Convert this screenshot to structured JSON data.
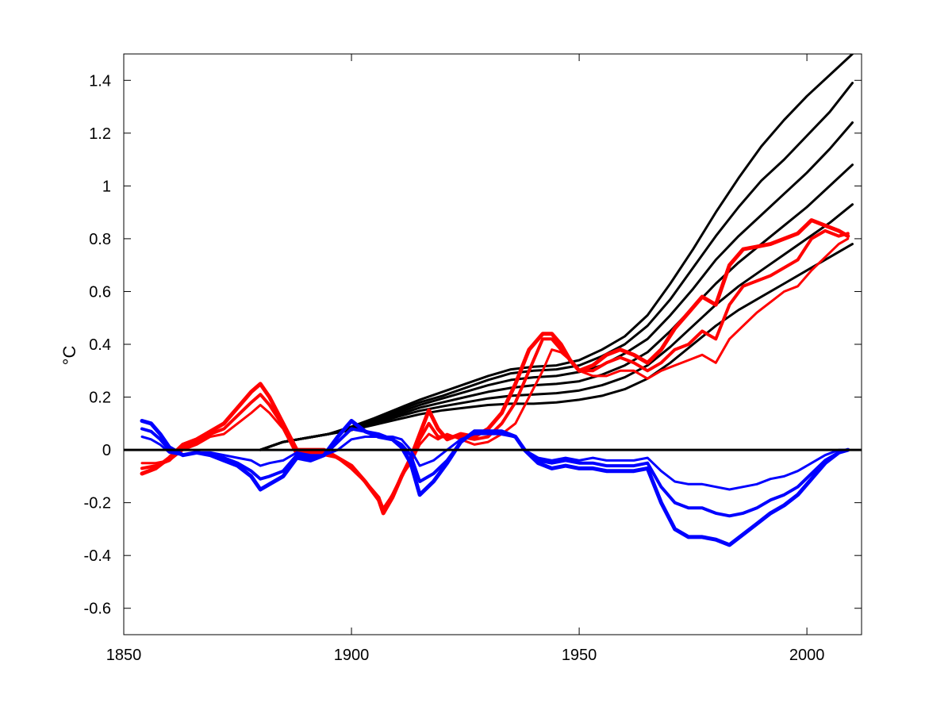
{
  "chart_data": {
    "type": "line",
    "title": "",
    "xlabel": "",
    "ylabel": "°C",
    "xlim": [
      1850,
      2012
    ],
    "ylim": [
      -0.7,
      1.5
    ],
    "xticks": [
      1850,
      1900,
      1950,
      2000
    ],
    "yticks": [
      -0.6,
      -0.4,
      -0.2,
      0,
      0.2,
      0.4,
      0.6,
      0.8,
      1,
      1.2,
      1.4
    ],
    "ytick_labels": [
      "-0.6",
      "-0.4",
      "-0.2",
      "0",
      "0.2",
      "0.4",
      "0.6",
      "0.8",
      "1",
      "1.2",
      "1.4"
    ],
    "grid": false,
    "zero_line": true,
    "colors": {
      "red": "#ff0000",
      "blue": "#0000ff",
      "black": "#000000"
    },
    "series": [
      {
        "color": "#000000",
        "width": 3,
        "x": [
          1880,
          1885,
          1890,
          1895,
          1900,
          1905,
          1910,
          1915,
          1920,
          1925,
          1930,
          1935,
          1940,
          1945,
          1950,
          1955,
          1960,
          1965,
          1970,
          1975,
          1980,
          1985,
          1990,
          1995,
          2000,
          2005,
          2010
        ],
        "y": [
          0,
          0.03,
          0.045,
          0.06,
          0.075,
          0.095,
          0.115,
          0.135,
          0.15,
          0.16,
          0.17,
          0.175,
          0.175,
          0.18,
          0.19,
          0.205,
          0.23,
          0.27,
          0.33,
          0.4,
          0.47,
          0.53,
          0.58,
          0.63,
          0.68,
          0.73,
          0.78
        ]
      },
      {
        "color": "#000000",
        "width": 3,
        "x": [
          1880,
          1885,
          1890,
          1895,
          1900,
          1905,
          1910,
          1915,
          1920,
          1925,
          1930,
          1935,
          1940,
          1945,
          1950,
          1955,
          1960,
          1965,
          1970,
          1975,
          1980,
          1985,
          1990,
          1995,
          2000,
          2005,
          2010
        ],
        "y": [
          0,
          0.03,
          0.045,
          0.06,
          0.075,
          0.1,
          0.125,
          0.148,
          0.165,
          0.18,
          0.195,
          0.205,
          0.21,
          0.215,
          0.225,
          0.245,
          0.275,
          0.32,
          0.39,
          0.47,
          0.55,
          0.62,
          0.68,
          0.74,
          0.8,
          0.86,
          0.93
        ]
      },
      {
        "color": "#000000",
        "width": 3,
        "x": [
          1880,
          1885,
          1890,
          1895,
          1900,
          1905,
          1910,
          1915,
          1920,
          1925,
          1930,
          1935,
          1940,
          1945,
          1950,
          1955,
          1960,
          1965,
          1970,
          1975,
          1980,
          1985,
          1990,
          1995,
          2000,
          2005,
          2010
        ],
        "y": [
          0,
          0.03,
          0.045,
          0.06,
          0.08,
          0.105,
          0.132,
          0.16,
          0.18,
          0.2,
          0.22,
          0.235,
          0.245,
          0.25,
          0.26,
          0.285,
          0.32,
          0.37,
          0.45,
          0.54,
          0.63,
          0.71,
          0.78,
          0.85,
          0.92,
          1.0,
          1.08
        ]
      },
      {
        "color": "#000000",
        "width": 3,
        "x": [
          1880,
          1885,
          1890,
          1895,
          1900,
          1905,
          1910,
          1915,
          1920,
          1925,
          1930,
          1935,
          1940,
          1945,
          1950,
          1955,
          1960,
          1965,
          1970,
          1975,
          1980,
          1985,
          1990,
          1995,
          2000,
          2005,
          2010
        ],
        "y": [
          0,
          0.03,
          0.045,
          0.06,
          0.085,
          0.11,
          0.14,
          0.17,
          0.195,
          0.22,
          0.245,
          0.265,
          0.275,
          0.28,
          0.295,
          0.32,
          0.365,
          0.42,
          0.51,
          0.61,
          0.72,
          0.81,
          0.89,
          0.97,
          1.05,
          1.14,
          1.24
        ]
      },
      {
        "color": "#000000",
        "width": 3,
        "x": [
          1880,
          1885,
          1890,
          1895,
          1900,
          1905,
          1910,
          1915,
          1920,
          1925,
          1930,
          1935,
          1940,
          1945,
          1950,
          1955,
          1960,
          1965,
          1970,
          1975,
          1980,
          1985,
          1990,
          1995,
          2000,
          2005,
          2010
        ],
        "y": [
          0,
          0.03,
          0.045,
          0.06,
          0.085,
          0.115,
          0.148,
          0.18,
          0.205,
          0.235,
          0.265,
          0.29,
          0.3,
          0.305,
          0.32,
          0.355,
          0.4,
          0.47,
          0.57,
          0.69,
          0.81,
          0.92,
          1.02,
          1.1,
          1.19,
          1.28,
          1.39
        ]
      },
      {
        "color": "#000000",
        "width": 3,
        "x": [
          1880,
          1885,
          1890,
          1895,
          1900,
          1905,
          1910,
          1915,
          1920,
          1925,
          1930,
          1935,
          1940,
          1945,
          1950,
          1955,
          1960,
          1965,
          1970,
          1975,
          1980,
          1985,
          1990,
          1995,
          2000,
          2005,
          2010
        ],
        "y": [
          0,
          0.03,
          0.045,
          0.06,
          0.088,
          0.12,
          0.155,
          0.19,
          0.22,
          0.25,
          0.28,
          0.305,
          0.315,
          0.32,
          0.34,
          0.38,
          0.43,
          0.51,
          0.63,
          0.76,
          0.9,
          1.03,
          1.15,
          1.25,
          1.34,
          1.42,
          1.5
        ]
      },
      {
        "color": "#ff0000",
        "width": 3,
        "x": [
          1854,
          1857,
          1860,
          1863,
          1866,
          1869,
          1872,
          1875,
          1878,
          1880,
          1882,
          1885,
          1888,
          1891,
          1894,
          1897,
          1900,
          1903,
          1906,
          1907,
          1909,
          1911,
          1913,
          1915,
          1917,
          1919,
          1921,
          1924,
          1927,
          1930,
          1933,
          1936,
          1939,
          1942,
          1944,
          1946,
          1948,
          1950,
          1953,
          1956,
          1959,
          1962,
          1965,
          1968,
          1971,
          1974,
          1977,
          1980,
          1983,
          1986,
          1989,
          1992,
          1995,
          1998,
          2001,
          2004,
          2007,
          2009
        ],
        "y": [
          -0.05,
          -0.05,
          -0.04,
          0.0,
          0.02,
          0.05,
          0.06,
          0.1,
          0.14,
          0.17,
          0.14,
          0.08,
          -0.02,
          -0.02,
          -0.02,
          -0.03,
          -0.07,
          -0.12,
          -0.18,
          -0.22,
          -0.17,
          -0.1,
          -0.05,
          0.02,
          0.06,
          0.04,
          0.06,
          0.04,
          0.02,
          0.03,
          0.06,
          0.1,
          0.2,
          0.3,
          0.38,
          0.37,
          0.34,
          0.3,
          0.28,
          0.28,
          0.3,
          0.3,
          0.27,
          0.3,
          0.32,
          0.34,
          0.36,
          0.33,
          0.42,
          0.47,
          0.52,
          0.56,
          0.6,
          0.62,
          0.68,
          0.73,
          0.78,
          0.8
        ]
      },
      {
        "color": "#ff0000",
        "width": 4,
        "x": [
          1854,
          1857,
          1860,
          1863,
          1866,
          1869,
          1872,
          1875,
          1878,
          1880,
          1882,
          1885,
          1888,
          1891,
          1894,
          1897,
          1900,
          1903,
          1906,
          1907,
          1909,
          1911,
          1913,
          1915,
          1917,
          1919,
          1921,
          1924,
          1927,
          1930,
          1933,
          1936,
          1939,
          1942,
          1944,
          1946,
          1948,
          1950,
          1953,
          1956,
          1959,
          1962,
          1965,
          1968,
          1971,
          1974,
          1977,
          1980,
          1983,
          1986,
          1989,
          1992,
          1995,
          1998,
          2001,
          2004,
          2007,
          2009
        ],
        "y": [
          -0.07,
          -0.06,
          -0.04,
          0.01,
          0.03,
          0.06,
          0.08,
          0.13,
          0.18,
          0.21,
          0.17,
          0.09,
          -0.01,
          -0.01,
          -0.01,
          -0.03,
          -0.07,
          -0.12,
          -0.18,
          -0.23,
          -0.17,
          -0.1,
          -0.04,
          0.04,
          0.1,
          0.05,
          0.05,
          0.05,
          0.04,
          0.05,
          0.1,
          0.18,
          0.3,
          0.42,
          0.42,
          0.38,
          0.34,
          0.3,
          0.3,
          0.33,
          0.35,
          0.33,
          0.3,
          0.33,
          0.38,
          0.4,
          0.45,
          0.42,
          0.55,
          0.62,
          0.64,
          0.66,
          0.69,
          0.72,
          0.8,
          0.83,
          0.81,
          0.82
        ]
      },
      {
        "color": "#ff0000",
        "width": 5,
        "x": [
          1854,
          1857,
          1860,
          1863,
          1866,
          1869,
          1872,
          1875,
          1878,
          1880,
          1882,
          1885,
          1888,
          1891,
          1894,
          1897,
          1900,
          1903,
          1906,
          1907,
          1909,
          1911,
          1913,
          1915,
          1917,
          1919,
          1921,
          1924,
          1927,
          1930,
          1933,
          1936,
          1939,
          1942,
          1944,
          1946,
          1948,
          1950,
          1953,
          1956,
          1959,
          1962,
          1965,
          1968,
          1971,
          1974,
          1977,
          1980,
          1983,
          1986,
          1989,
          1992,
          1995,
          1998,
          2001,
          2004,
          2007,
          2009
        ],
        "y": [
          -0.09,
          -0.07,
          -0.03,
          0.02,
          0.04,
          0.07,
          0.1,
          0.16,
          0.22,
          0.25,
          0.2,
          0.1,
          0.0,
          0.0,
          0.0,
          -0.03,
          -0.06,
          -0.12,
          -0.19,
          -0.24,
          -0.18,
          -0.1,
          -0.03,
          0.06,
          0.15,
          0.08,
          0.04,
          0.06,
          0.05,
          0.08,
          0.14,
          0.25,
          0.38,
          0.44,
          0.44,
          0.4,
          0.34,
          0.3,
          0.32,
          0.36,
          0.38,
          0.36,
          0.33,
          0.38,
          0.46,
          0.52,
          0.58,
          0.55,
          0.7,
          0.76,
          0.77,
          0.78,
          0.8,
          0.82,
          0.87,
          0.85,
          0.83,
          0.81
        ]
      },
      {
        "color": "#0000ff",
        "width": 3,
        "x": [
          1854,
          1856,
          1858,
          1860,
          1863,
          1866,
          1869,
          1872,
          1875,
          1878,
          1880,
          1882,
          1885,
          1888,
          1891,
          1894,
          1897,
          1900,
          1903,
          1906,
          1909,
          1911,
          1913,
          1915,
          1918,
          1921,
          1924,
          1927,
          1930,
          1933,
          1936,
          1938,
          1941,
          1944,
          1947,
          1950,
          1953,
          1956,
          1959,
          1962,
          1965,
          1968,
          1971,
          1974,
          1977,
          1980,
          1983,
          1986,
          1989,
          1992,
          1995,
          1998,
          2001,
          2004,
          2007,
          2009
        ],
        "y": [
          0.05,
          0.04,
          0.02,
          -0.01,
          -0.02,
          -0.01,
          -0.01,
          -0.02,
          -0.03,
          -0.04,
          -0.06,
          -0.05,
          -0.04,
          -0.01,
          -0.02,
          -0.02,
          0.0,
          0.04,
          0.05,
          0.05,
          0.05,
          0.04,
          0.0,
          -0.06,
          -0.04,
          0.0,
          0.04,
          0.06,
          0.06,
          0.06,
          0.05,
          0.0,
          -0.03,
          -0.04,
          -0.03,
          -0.04,
          -0.03,
          -0.04,
          -0.04,
          -0.04,
          -0.03,
          -0.08,
          -0.12,
          -0.13,
          -0.13,
          -0.14,
          -0.15,
          -0.14,
          -0.13,
          -0.11,
          -0.1,
          -0.08,
          -0.05,
          -0.02,
          0.0,
          0.0
        ]
      },
      {
        "color": "#0000ff",
        "width": 4,
        "x": [
          1854,
          1856,
          1858,
          1860,
          1863,
          1866,
          1869,
          1872,
          1875,
          1878,
          1880,
          1882,
          1885,
          1888,
          1891,
          1894,
          1897,
          1900,
          1903,
          1906,
          1909,
          1911,
          1913,
          1915,
          1918,
          1921,
          1924,
          1927,
          1930,
          1933,
          1936,
          1938,
          1941,
          1944,
          1947,
          1950,
          1953,
          1956,
          1959,
          1962,
          1965,
          1968,
          1971,
          1974,
          1977,
          1980,
          1983,
          1986,
          1989,
          1992,
          1995,
          1998,
          2001,
          2004,
          2007,
          2009
        ],
        "y": [
          0.08,
          0.07,
          0.04,
          0.0,
          -0.02,
          -0.01,
          -0.02,
          -0.03,
          -0.05,
          -0.08,
          -0.11,
          -0.1,
          -0.08,
          -0.02,
          -0.03,
          -0.02,
          0.03,
          0.08,
          0.07,
          0.06,
          0.04,
          0.02,
          -0.02,
          -0.12,
          -0.09,
          -0.04,
          0.03,
          0.07,
          0.07,
          0.06,
          0.05,
          0.0,
          -0.04,
          -0.05,
          -0.04,
          -0.05,
          -0.05,
          -0.06,
          -0.06,
          -0.06,
          -0.05,
          -0.14,
          -0.2,
          -0.22,
          -0.22,
          -0.24,
          -0.25,
          -0.24,
          -0.22,
          -0.19,
          -0.17,
          -0.14,
          -0.09,
          -0.04,
          -0.01,
          0.0
        ]
      },
      {
        "color": "#0000ff",
        "width": 5,
        "x": [
          1854,
          1856,
          1858,
          1860,
          1863,
          1866,
          1869,
          1872,
          1875,
          1878,
          1880,
          1882,
          1885,
          1888,
          1891,
          1894,
          1897,
          1900,
          1903,
          1906,
          1909,
          1911,
          1913,
          1915,
          1918,
          1921,
          1924,
          1927,
          1930,
          1933,
          1936,
          1938,
          1941,
          1944,
          1947,
          1950,
          1953,
          1956,
          1959,
          1962,
          1965,
          1968,
          1971,
          1974,
          1977,
          1980,
          1983,
          1986,
          1989,
          1992,
          1995,
          1998,
          2001,
          2004,
          2007,
          2009
        ],
        "y": [
          0.11,
          0.1,
          0.06,
          0.01,
          -0.02,
          -0.01,
          -0.02,
          -0.04,
          -0.06,
          -0.1,
          -0.15,
          -0.13,
          -0.1,
          -0.03,
          -0.04,
          -0.02,
          0.05,
          0.11,
          0.07,
          0.05,
          0.04,
          0.01,
          -0.05,
          -0.17,
          -0.12,
          -0.05,
          0.03,
          0.07,
          0.07,
          0.07,
          0.05,
          0.0,
          -0.05,
          -0.07,
          -0.06,
          -0.07,
          -0.07,
          -0.08,
          -0.08,
          -0.08,
          -0.07,
          -0.2,
          -0.3,
          -0.33,
          -0.33,
          -0.34,
          -0.36,
          -0.32,
          -0.28,
          -0.24,
          -0.21,
          -0.17,
          -0.11,
          -0.05,
          -0.01,
          0.0
        ]
      }
    ]
  }
}
